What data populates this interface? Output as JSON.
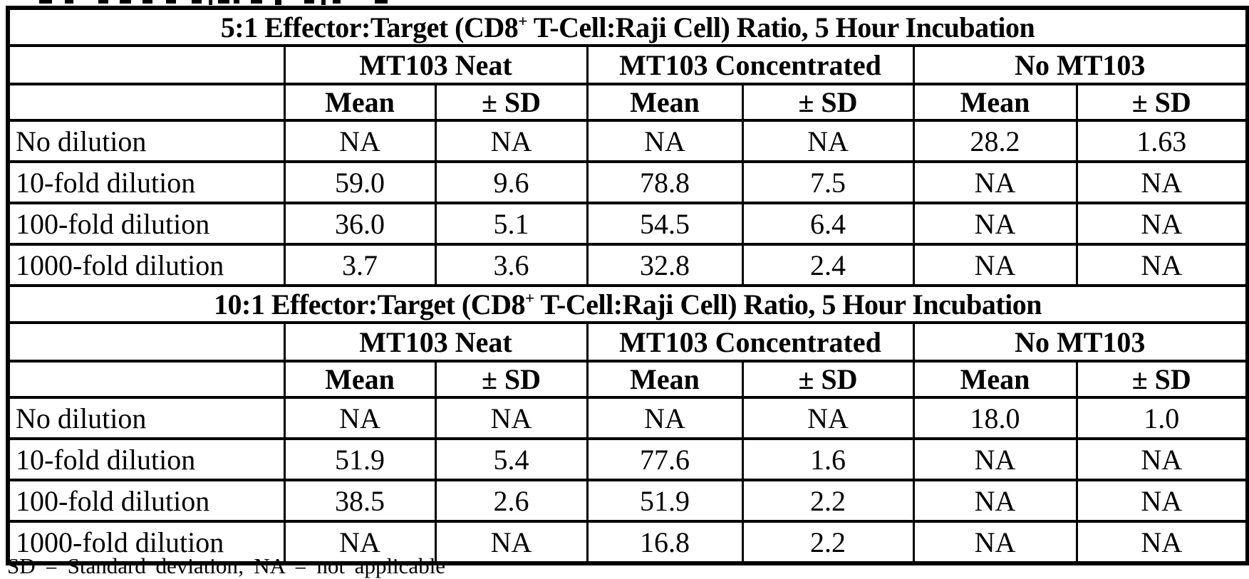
{
  "page": {
    "background": "#ffffff",
    "text_color": "#000000",
    "border_color": "#000000"
  },
  "top_clipped_fragments": {
    "description": "bottom remnants of a text line cropped at the top edge",
    "bars": [
      [
        55,
        18,
        5
      ],
      [
        91,
        12,
        5
      ],
      [
        138,
        14,
        5
      ],
      [
        168,
        16,
        5
      ],
      [
        200,
        14,
        5
      ],
      [
        233,
        14,
        5
      ],
      [
        269,
        14,
        5
      ],
      [
        293,
        5,
        7
      ],
      [
        306,
        16,
        5
      ],
      [
        328,
        8,
        5
      ],
      [
        352,
        16,
        5
      ],
      [
        386,
        9,
        7
      ],
      [
        427,
        14,
        5
      ],
      [
        451,
        6,
        7
      ],
      [
        467,
        11,
        5
      ],
      [
        526,
        18,
        5
      ]
    ]
  },
  "tables": [
    {
      "title": {
        "prefix": "5:1 Effector:Target (CD8",
        "sup": "+",
        "suffix": " T-Cell:Raji Cell) Ratio, 5 Hour Incubation"
      },
      "group_headers": [
        "MT103 Neat",
        "MT103 Concentrated",
        "No MT103"
      ],
      "sub_headers": [
        "Mean",
        "± SD",
        "Mean",
        "± SD",
        "Mean",
        "± SD"
      ],
      "rows": [
        {
          "label": "No dilution",
          "values": [
            "NA",
            "NA",
            "NA",
            "NA",
            "28.2",
            "1.63"
          ]
        },
        {
          "label": "10-fold dilution",
          "values": [
            "59.0",
            "9.6",
            "78.8",
            "7.5",
            "NA",
            "NA"
          ]
        },
        {
          "label": "100-fold dilution",
          "values": [
            "36.0",
            "5.1",
            "54.5",
            "6.4",
            "NA",
            "NA"
          ]
        },
        {
          "label": "1000-fold dilution",
          "values": [
            "3.7",
            "3.6",
            "32.8",
            "2.4",
            "NA",
            "NA"
          ]
        }
      ]
    },
    {
      "title": {
        "prefix": "10:1 Effector:Target (CD8",
        "sup": "+",
        "suffix": " T-Cell:Raji Cell) Ratio, 5 Hour Incubation"
      },
      "group_headers": [
        "MT103 Neat",
        "MT103 Concentrated",
        "No MT103"
      ],
      "sub_headers": [
        "Mean",
        "± SD",
        "Mean",
        "± SD",
        "Mean",
        "± SD"
      ],
      "rows": [
        {
          "label": "No dilution",
          "values": [
            "NA",
            "NA",
            "NA",
            "NA",
            "18.0",
            "1.0"
          ]
        },
        {
          "label": "10-fold dilution",
          "values": [
            "51.9",
            "5.4",
            "77.6",
            "1.6",
            "NA",
            "NA"
          ]
        },
        {
          "label": "100-fold dilution",
          "values": [
            "38.5",
            "2.6",
            "51.9",
            "2.2",
            "NA",
            "NA"
          ]
        },
        {
          "label": "1000-fold dilution",
          "values": [
            "NA",
            "NA",
            "16.8",
            "2.2",
            "NA",
            "NA"
          ]
        }
      ]
    }
  ],
  "footnote": {
    "text": "SD = Standard deviation; NA = not applicable"
  }
}
